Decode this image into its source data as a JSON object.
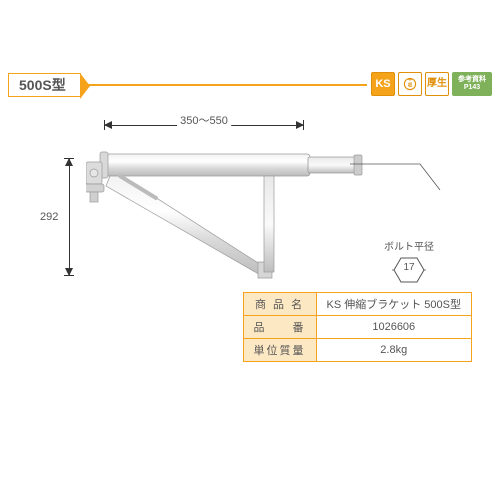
{
  "colors": {
    "accent": "#f5a31a",
    "accent_dark": "#e08f0b",
    "ref_badge": "#7fb05a",
    "table_border": "#f5a31a",
    "table_header_bg": "#fde8c4",
    "text": "#555555"
  },
  "header": {
    "model_label": "500S型",
    "badges": {
      "ks": "KS",
      "thick": "厚生",
      "ref_line1": "参考資料",
      "ref_line2": "P143"
    }
  },
  "dimensions": {
    "length": "350～550",
    "height": "292"
  },
  "bolt": {
    "caption": "ボルト平径",
    "value": "17"
  },
  "spec_table": {
    "rows": [
      {
        "label": "商 品 名",
        "value": "KS 伸縮ブラケット 500S型"
      },
      {
        "label": "品　　番",
        "value": "1026606"
      },
      {
        "label": "単位質量",
        "value": "2.8kg"
      }
    ]
  }
}
